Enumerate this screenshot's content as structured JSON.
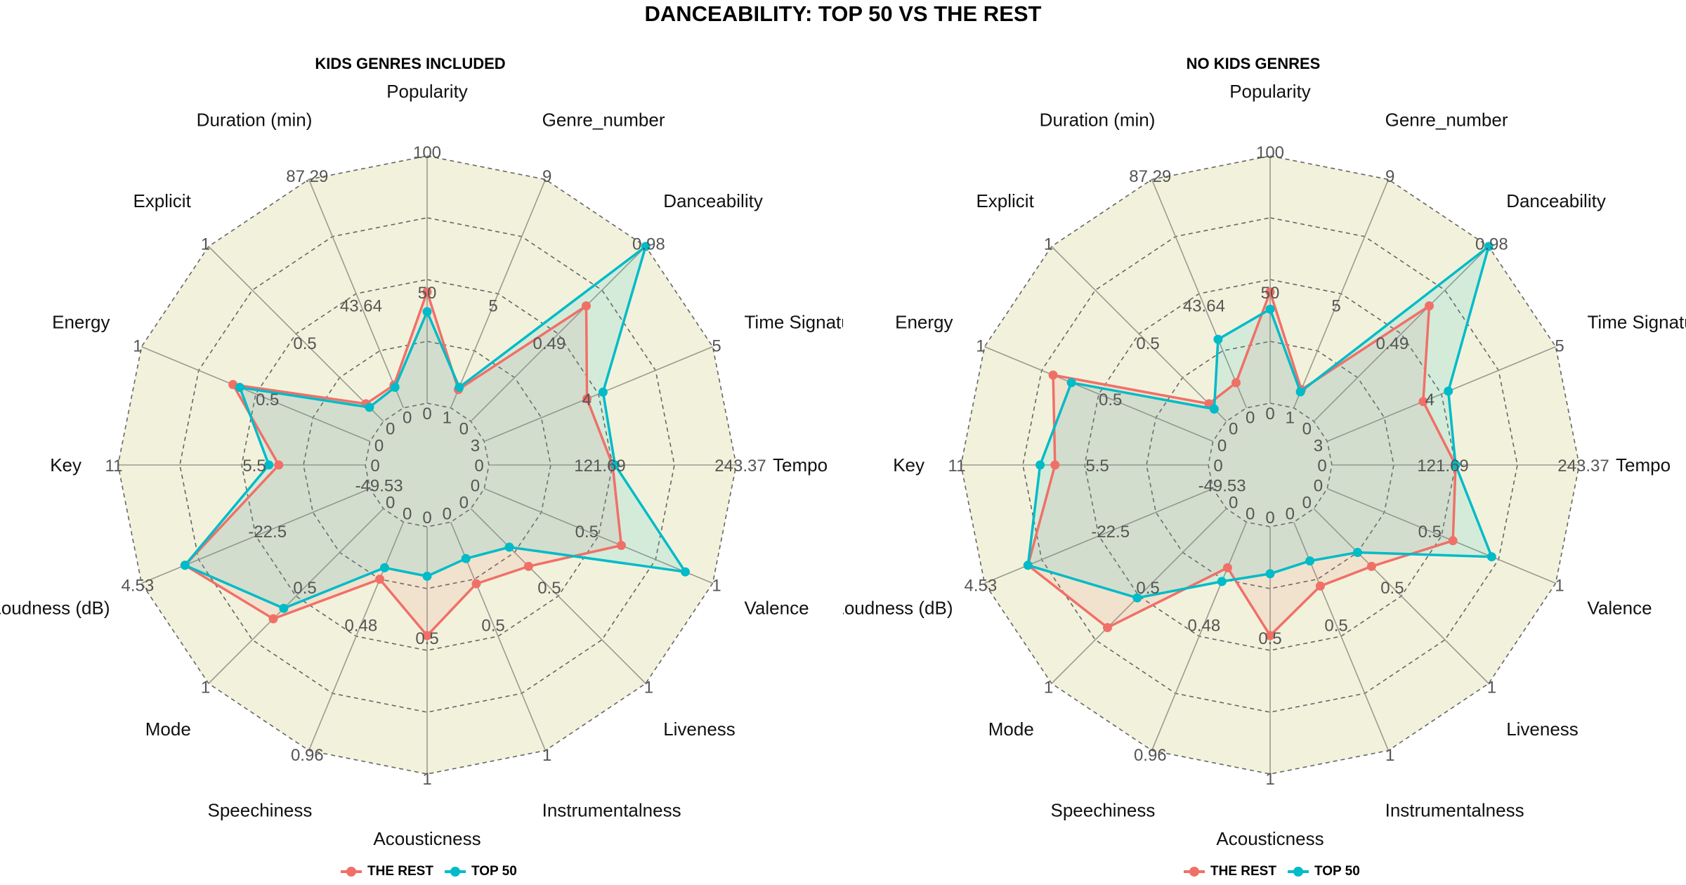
{
  "title": "DANCEABILITY: TOP 50 VS THE REST",
  "colors": {
    "rest": "#F07068",
    "top50": "#00BBC8",
    "background": "#F2F2DC",
    "grid": "#666666",
    "axis": "#9A9A90"
  },
  "chart_data": [
    {
      "type": "radar",
      "title": "KIDS GENRES INCLUDED",
      "axes": [
        {
          "label": "Popularity",
          "min": "0",
          "mid": "50",
          "max": "100"
        },
        {
          "label": "Genre_number",
          "min": "1",
          "mid": "5",
          "max": "9"
        },
        {
          "label": "Danceability",
          "min": "0",
          "mid": "0.49",
          "max": "0.98"
        },
        {
          "label": "Time Signature",
          "min": "3",
          "mid": "4",
          "max": "5"
        },
        {
          "label": "Tempo",
          "min": "0",
          "mid": "121.69",
          "max": "243.37"
        },
        {
          "label": "Valence",
          "min": "0",
          "mid": "0.5",
          "max": "1"
        },
        {
          "label": "Liveness",
          "min": "0",
          "mid": "0.5",
          "max": "1"
        },
        {
          "label": "Instrumentalness",
          "min": "0",
          "mid": "0.5",
          "max": "1"
        },
        {
          "label": "Acousticness",
          "min": "0",
          "mid": "0.5",
          "max": "1"
        },
        {
          "label": "Speechiness",
          "min": "0",
          "mid": "0.48",
          "max": "0.96"
        },
        {
          "label": "Mode",
          "min": "0",
          "mid": "0.5",
          "max": "1"
        },
        {
          "label": "Loudness (dB)",
          "min": "-49.53",
          "mid": "-22.5",
          "max": "4.53"
        },
        {
          "label": "Key",
          "min": "0",
          "mid": "5.5",
          "max": "11"
        },
        {
          "label": "Energy",
          "min": "0",
          "mid": "0.5",
          "max": "1"
        },
        {
          "label": "Explicit",
          "min": "0",
          "mid": "0.5",
          "max": "1"
        },
        {
          "label": "Duration (min)",
          "min": "0",
          "mid": "43.64",
          "max": "87.29"
        }
      ],
      "series": [
        {
          "name": "THE REST",
          "color_key": "rest",
          "values": [
            0.45,
            0.08,
            0.66,
            0.45,
            0.5,
            0.6,
            0.33,
            0.27,
            0.44,
            0.25,
            0.63,
            0.81,
            0.35,
            0.6,
            0.1,
            0.1
          ]
        },
        {
          "name": "TOP 50",
          "color_key": "top50",
          "values": [
            0.37,
            0.09,
            1.0,
            0.52,
            0.51,
            0.88,
            0.22,
            0.16,
            0.2,
            0.2,
            0.57,
            0.81,
            0.39,
            0.57,
            0.08,
            0.09
          ]
        }
      ]
    },
    {
      "type": "radar",
      "title": "NO KIDS GENRES",
      "axes": [
        {
          "label": "Popularity",
          "min": "0",
          "mid": "50",
          "max": "100"
        },
        {
          "label": "Genre_number",
          "min": "1",
          "mid": "5",
          "max": "9"
        },
        {
          "label": "Danceability",
          "min": "0",
          "mid": "0.49",
          "max": "0.98"
        },
        {
          "label": "Time Signature",
          "min": "3",
          "mid": "4",
          "max": "5"
        },
        {
          "label": "Tempo",
          "min": "0",
          "mid": "121.69",
          "max": "243.37"
        },
        {
          "label": "Valence",
          "min": "0",
          "mid": "0.5",
          "max": "1"
        },
        {
          "label": "Liveness",
          "min": "0",
          "mid": "0.5",
          "max": "1"
        },
        {
          "label": "Instrumentalness",
          "min": "0",
          "mid": "0.5",
          "max": "1"
        },
        {
          "label": "Acousticness",
          "min": "0",
          "mid": "0.5",
          "max": "1"
        },
        {
          "label": "Speechiness",
          "min": "0",
          "mid": "0.48",
          "max": "0.96"
        },
        {
          "label": "Mode",
          "min": "0",
          "mid": "0.5",
          "max": "1"
        },
        {
          "label": "Loudness (dB)",
          "min": "-49.53",
          "mid": "-22.5",
          "max": "4.53"
        },
        {
          "label": "Key",
          "min": "0",
          "mid": "5.5",
          "max": "11"
        },
        {
          "label": "Energy",
          "min": "0",
          "mid": "0.5",
          "max": "1"
        },
        {
          "label": "Explicit",
          "min": "0",
          "mid": "0.5",
          "max": "1"
        },
        {
          "label": "Duration (min)",
          "min": "0",
          "mid": "43.64",
          "max": "87.29"
        }
      ],
      "series": [
        {
          "name": "THE REST",
          "color_key": "rest",
          "values": [
            0.45,
            0.08,
            0.66,
            0.42,
            0.5,
            0.55,
            0.33,
            0.28,
            0.44,
            0.2,
            0.68,
            0.81,
            0.62,
            0.7,
            0.1,
            0.11
          ]
        },
        {
          "name": "TOP 50",
          "color_key": "top50",
          "values": [
            0.38,
            0.07,
            1.0,
            0.53,
            0.5,
            0.72,
            0.25,
            0.17,
            0.19,
            0.26,
            0.51,
            0.81,
            0.68,
            0.62,
            0.07,
            0.3
          ]
        }
      ]
    }
  ],
  "legend": [
    {
      "label": "THE REST",
      "color_key": "rest"
    },
    {
      "label": "TOP 50",
      "color_key": "top50"
    }
  ]
}
